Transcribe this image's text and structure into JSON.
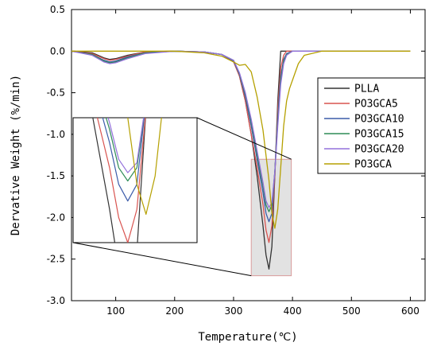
{
  "chart_data": {
    "type": "line",
    "xlabel": "Temperature(℃)",
    "ylabel": "Dervative Weight (%/min)",
    "xlim": [
      25,
      625
    ],
    "ylim": [
      -3.0,
      0.5
    ],
    "xticks": [
      100,
      200,
      300,
      400,
      500,
      600
    ],
    "yticks": [
      0.5,
      0.0,
      -0.5,
      -1.0,
      -1.5,
      -2.0,
      -2.5,
      -3.0
    ],
    "ytick_labels": [
      "0.5",
      "0.0",
      "-0.5",
      "-1.0",
      "-1.5",
      "-2.0",
      "-2.5",
      "-3.0"
    ],
    "grid": false,
    "legend_position": "right",
    "inset": {
      "source_region_x": [
        330,
        398
      ],
      "source_region_y": [
        -2.7,
        -1.3
      ],
      "shows": "zoom of peak region"
    },
    "series": [
      {
        "name": "PLLA",
        "color": "#333333",
        "x": [
          25,
          60,
          80,
          90,
          100,
          120,
          150,
          200,
          250,
          280,
          300,
          310,
          320,
          330,
          340,
          350,
          355,
          360,
          365,
          370,
          375,
          380,
          385,
          390,
          400,
          450,
          500,
          600
        ],
        "y": [
          0.0,
          -0.02,
          -0.08,
          -0.1,
          -0.09,
          -0.05,
          -0.01,
          0.0,
          -0.01,
          -0.04,
          -0.12,
          -0.3,
          -0.6,
          -1.0,
          -1.5,
          -2.1,
          -2.45,
          -2.62,
          -2.35,
          -1.5,
          -0.6,
          0.0,
          0.0,
          0.0,
          0.0,
          0.0,
          0.0,
          0.0
        ]
      },
      {
        "name": "PO3GCA5",
        "color": "#d9534f",
        "x": [
          25,
          60,
          80,
          90,
          100,
          120,
          150,
          200,
          250,
          280,
          300,
          310,
          320,
          330,
          340,
          350,
          355,
          360,
          365,
          370,
          375,
          380,
          385,
          390,
          400,
          450,
          500,
          600
        ],
        "y": [
          0.0,
          -0.03,
          -0.09,
          -0.11,
          -0.1,
          -0.06,
          -0.01,
          0.0,
          -0.01,
          -0.04,
          -0.13,
          -0.3,
          -0.6,
          -1.0,
          -1.4,
          -1.85,
          -2.15,
          -2.3,
          -2.1,
          -1.5,
          -0.7,
          -0.2,
          -0.05,
          0.0,
          0.0,
          0.0,
          0.0,
          0.0
        ]
      },
      {
        "name": "PO3GCA10",
        "color": "#3b5ba9",
        "x": [
          25,
          60,
          80,
          90,
          100,
          120,
          150,
          200,
          250,
          280,
          300,
          310,
          320,
          330,
          340,
          350,
          355,
          360,
          365,
          370,
          375,
          380,
          385,
          390,
          400,
          450,
          500,
          600
        ],
        "y": [
          0.0,
          -0.04,
          -0.11,
          -0.13,
          -0.12,
          -0.07,
          -0.02,
          0.0,
          -0.01,
          -0.04,
          -0.12,
          -0.28,
          -0.55,
          -0.9,
          -1.3,
          -1.7,
          -1.95,
          -2.05,
          -1.95,
          -1.45,
          -0.8,
          -0.3,
          -0.1,
          -0.03,
          0.0,
          0.0,
          0.0,
          0.0
        ]
      },
      {
        "name": "PO3GCA15",
        "color": "#2e8b57",
        "x": [
          25,
          60,
          80,
          90,
          100,
          120,
          150,
          200,
          250,
          280,
          300,
          310,
          320,
          330,
          340,
          350,
          355,
          360,
          365,
          370,
          375,
          380,
          385,
          390,
          400,
          450,
          500,
          600
        ],
        "y": [
          0.0,
          -0.04,
          -0.12,
          -0.14,
          -0.13,
          -0.08,
          -0.02,
          0.0,
          -0.01,
          -0.04,
          -0.11,
          -0.27,
          -0.52,
          -0.85,
          -1.25,
          -1.62,
          -1.85,
          -1.93,
          -1.85,
          -1.45,
          -0.85,
          -0.35,
          -0.12,
          -0.04,
          0.0,
          0.0,
          0.0,
          0.0
        ]
      },
      {
        "name": "PO3GCA20",
        "color": "#9370db",
        "x": [
          25,
          60,
          80,
          90,
          100,
          120,
          150,
          200,
          250,
          280,
          300,
          310,
          320,
          330,
          340,
          350,
          355,
          360,
          365,
          370,
          375,
          380,
          385,
          390,
          400,
          450,
          500,
          600
        ],
        "y": [
          0.0,
          -0.05,
          -0.13,
          -0.15,
          -0.14,
          -0.09,
          -0.03,
          0.0,
          -0.01,
          -0.04,
          -0.11,
          -0.26,
          -0.5,
          -0.82,
          -1.2,
          -1.58,
          -1.8,
          -1.88,
          -1.82,
          -1.45,
          -0.9,
          -0.4,
          -0.15,
          -0.05,
          0.0,
          0.0,
          0.0,
          0.0
        ]
      },
      {
        "name": "PO3GCA",
        "color": "#b5a000",
        "x": [
          25,
          60,
          100,
          150,
          200,
          250,
          280,
          300,
          310,
          320,
          330,
          340,
          350,
          360,
          365,
          370,
          375,
          380,
          385,
          390,
          395,
          400,
          410,
          420,
          450,
          500,
          600
        ],
        "y": [
          0.0,
          0.0,
          0.0,
          0.0,
          0.0,
          -0.02,
          -0.06,
          -0.13,
          -0.17,
          -0.16,
          -0.25,
          -0.55,
          -0.95,
          -1.55,
          -1.95,
          -2.13,
          -1.9,
          -1.4,
          -0.9,
          -0.6,
          -0.45,
          -0.35,
          -0.15,
          -0.05,
          0.0,
          0.0,
          0.0
        ]
      }
    ]
  }
}
